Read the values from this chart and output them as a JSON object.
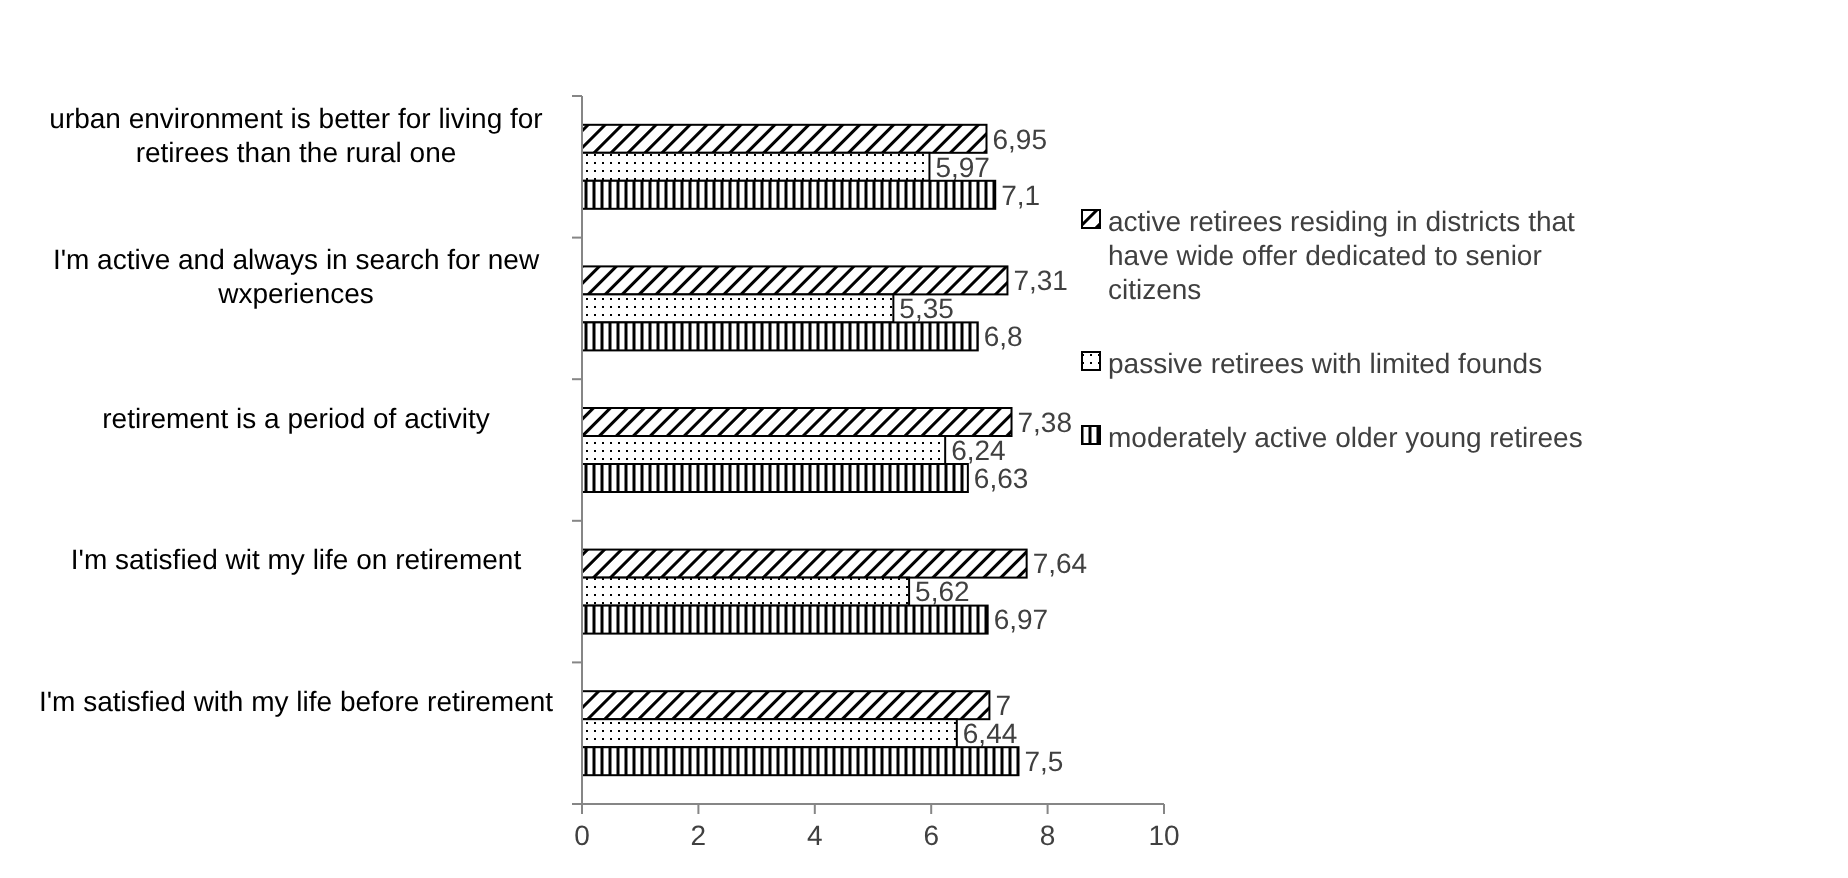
{
  "chart_data": {
    "type": "bar",
    "orientation": "horizontal",
    "categories": [
      "urban environment is better for living for retirees than the rural one",
      "I'm active and always in search for new wxperiences",
      "retirement is a period of activity",
      "I'm satisfied wit my life on retirement",
      "I'm satisfied with my life before retirement"
    ],
    "series": [
      {
        "name": "active retirees residing in districts that have wide offer  dedicated to senior citizens",
        "color": "#000000",
        "values": [
          6.95,
          7.31,
          7.38,
          7.64,
          7
        ],
        "value_labels": [
          "6,95",
          "7,31",
          "7,38",
          "7,64",
          "7"
        ]
      },
      {
        "name": "passive retirees with limited founds",
        "color": "#000000",
        "values": [
          5.97,
          5.35,
          6.24,
          5.62,
          6.44
        ],
        "value_labels": [
          "5,97",
          "5,35",
          "6,24",
          "5,62",
          "6,44"
        ]
      },
      {
        "name": "moderately active older young retirees",
        "color": "#000000",
        "values": [
          7.1,
          6.8,
          6.63,
          6.97,
          7.5
        ],
        "value_labels": [
          "7,1",
          "6,8",
          "6,63",
          "6,97",
          "7,5"
        ]
      }
    ],
    "xlim": [
      0,
      10
    ],
    "xticks": [
      0,
      2,
      4,
      6,
      8,
      10
    ],
    "legend": "right",
    "grid": false
  }
}
